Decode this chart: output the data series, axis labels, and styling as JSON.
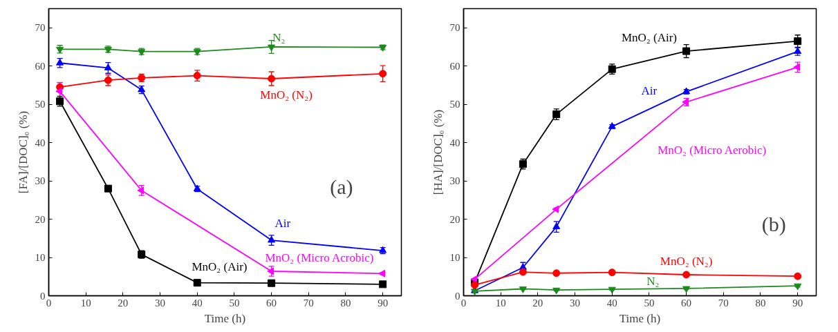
{
  "chart_data": [
    {
      "type": "line",
      "xlabel": "Time (h)",
      "ylabel": "[FA]/[DOC]₀ (%)",
      "xlim": [
        0,
        95
      ],
      "ylim": [
        0,
        75
      ],
      "xticks": [
        0,
        10,
        20,
        30,
        40,
        50,
        60,
        70,
        80,
        90
      ],
      "yticks": [
        0,
        10,
        20,
        30,
        40,
        50,
        60,
        70
      ],
      "grid": false,
      "x": [
        3,
        16,
        25,
        40,
        60,
        90
      ],
      "series": [
        {
          "name": "N₂",
          "color": "#1a8a1a",
          "marker": "triangle_down",
          "values": [
            64.4,
            64.4,
            63.8,
            63.8,
            65.0,
            64.9
          ],
          "errors": [
            1.0,
            0.8,
            0.8,
            0.8,
            1.7,
            0.6
          ]
        },
        {
          "name": "Air",
          "color": "#0000ff",
          "marker": "triangle",
          "values": [
            60.8,
            59.5,
            53.8,
            27.9,
            14.5,
            11.8
          ],
          "errors": [
            1.2,
            1.4,
            1.0,
            0.7,
            1.3,
            0.8
          ]
        },
        {
          "name": "MnO₂ (N₂)",
          "color": "#ff0000",
          "marker": "circle",
          "values": [
            54.5,
            56.3,
            56.9,
            57.5,
            56.7,
            58.0
          ],
          "errors": [
            1.2,
            1.4,
            1.0,
            1.4,
            1.8,
            2.1
          ]
        },
        {
          "name": "MnO₂ (Micro Acrobic)",
          "color": "#ff00ff",
          "marker": "triangle_left",
          "x": [
            3,
            25,
            60,
            90
          ],
          "values": [
            53.4,
            27.5,
            6.4,
            5.8
          ],
          "errors": [
            2.3,
            1.3,
            1.3,
            0.3
          ]
        },
        {
          "name": "MnO₂ (Air)",
          "color": "#000000",
          "marker": "square",
          "values": [
            50.8,
            28.0,
            10.8,
            3.4,
            3.3,
            3.0
          ],
          "errors": [
            1.3,
            0.5,
            1.0,
            0.3,
            0.3,
            0.3
          ]
        }
      ],
      "annotations": [
        "(a)"
      ]
    },
    {
      "type": "line",
      "xlabel": "Time (h)",
      "ylabel": "[HA]/[DOC]₀ (%)",
      "xlim": [
        0,
        95
      ],
      "ylim": [
        0,
        75
      ],
      "xticks": [
        0,
        10,
        20,
        30,
        40,
        50,
        60,
        70,
        80,
        90
      ],
      "yticks": [
        0,
        10,
        20,
        30,
        40,
        50,
        60,
        70
      ],
      "grid": false,
      "x": [
        3,
        16,
        25,
        40,
        60,
        90
      ],
      "series": [
        {
          "name": "MnO₂ (Air)",
          "color": "#000000",
          "marker": "square",
          "values": [
            3.5,
            34.4,
            47.4,
            59.2,
            63.9,
            66.5
          ],
          "errors": [
            null,
            1.3,
            1.4,
            1.3,
            1.7,
            1.6
          ]
        },
        {
          "name": "Air",
          "color": "#0000ff",
          "marker": "triangle",
          "values": [
            1.3,
            7.4,
            18.0,
            44.2,
            53.3,
            63.8
          ],
          "errors": [
            null,
            1.3,
            1.4,
            0.5,
            0.6,
            1.0
          ]
        },
        {
          "name": "MnO₂ (Micro Aerobic)",
          "color": "#ff00ff",
          "marker": "triangle_left",
          "x": [
            3,
            25,
            60,
            90
          ],
          "values": [
            4.3,
            22.6,
            50.6,
            59.7
          ],
          "errors": [
            null,
            0.3,
            1.0,
            1.3
          ]
        },
        {
          "name": "MnO₂ (N₂)",
          "color": "#ff0000",
          "marker": "circle",
          "values": [
            2.8,
            6.2,
            5.9,
            6.1,
            5.5,
            5.1
          ],
          "errors": [
            null,
            0.4,
            0.3,
            0.3,
            0.3,
            0.3
          ]
        },
        {
          "name": "N₂",
          "color": "#1a8a1a",
          "marker": "triangle_down",
          "values": [
            1.2,
            1.8,
            1.5,
            1.7,
            1.9,
            2.6
          ],
          "errors": [
            null,
            0.2,
            0.2,
            0.2,
            0.2,
            0.3
          ]
        }
      ],
      "annotations": [
        "(b)"
      ]
    }
  ]
}
